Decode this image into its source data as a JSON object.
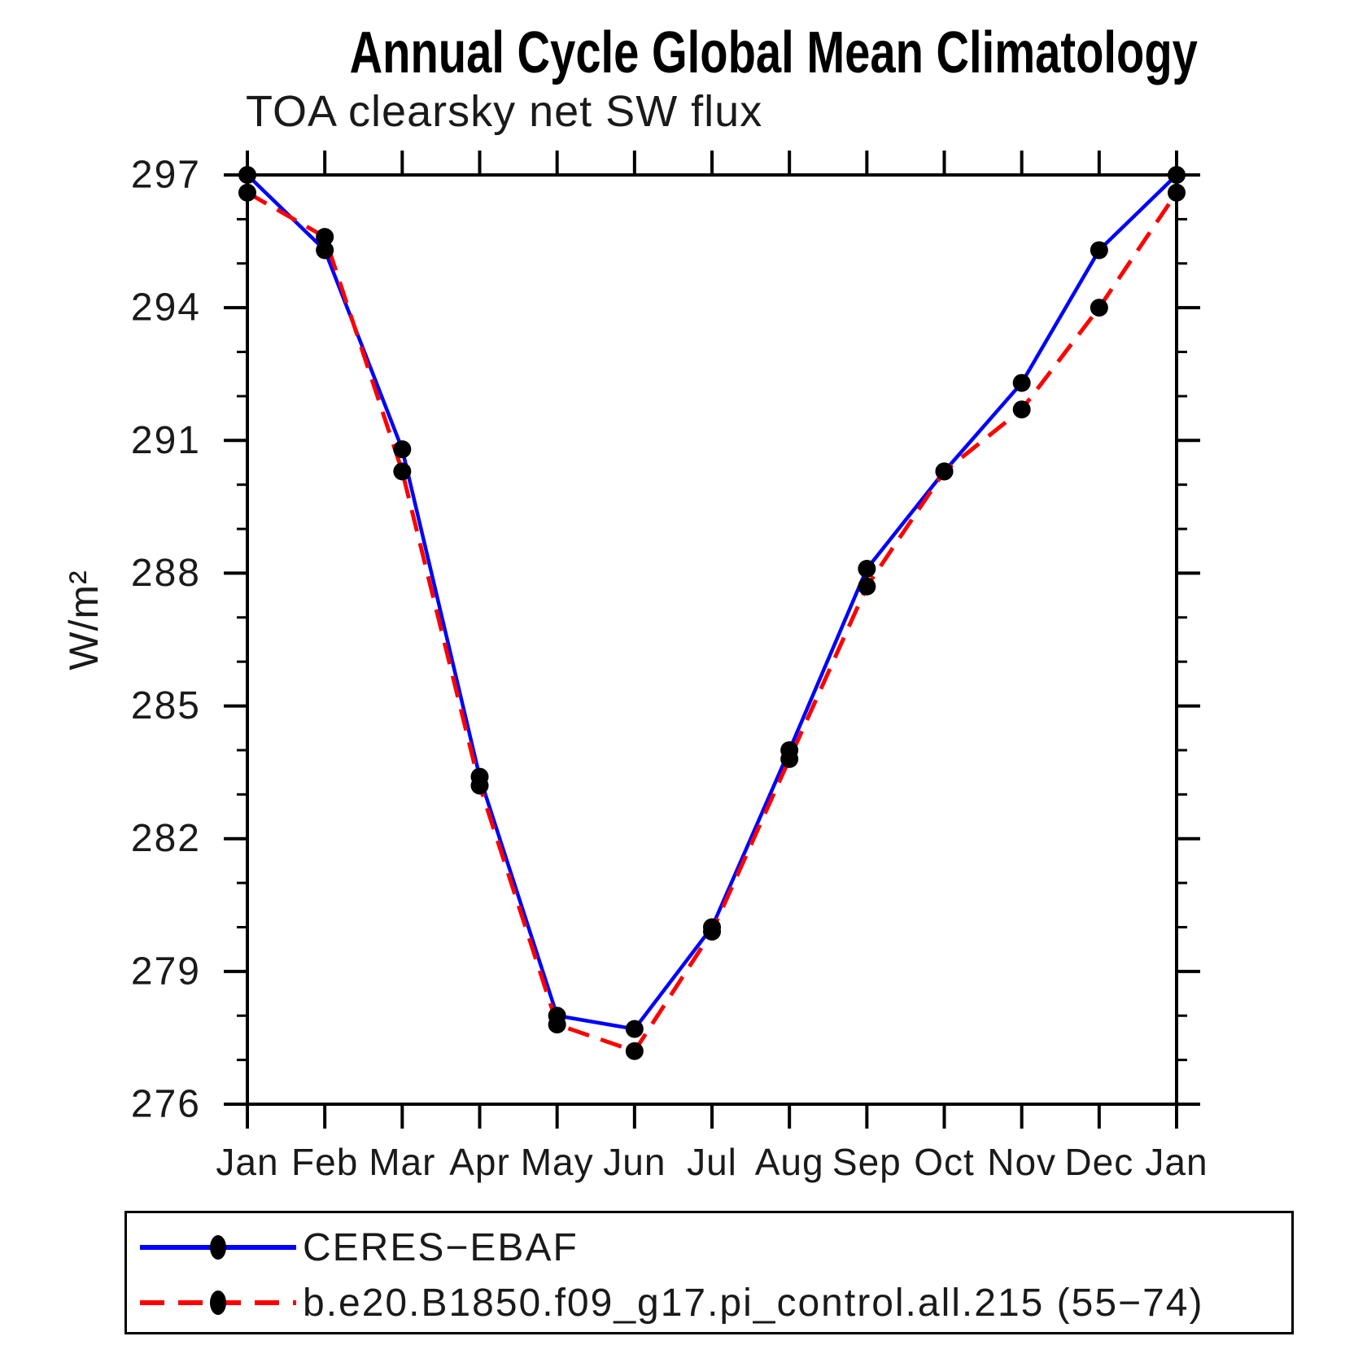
{
  "title": "Annual Cycle Global Mean Climatology",
  "subtitle": "TOA clearsky net SW flux",
  "y_axis_label": "W/m²",
  "chart_data": {
    "type": "line",
    "title": "Annual Cycle Global Mean Climatology",
    "subtitle": "TOA clearsky net SW flux",
    "xlabel": "",
    "ylabel": "W/m²",
    "categories": [
      "Jan",
      "Feb",
      "Mar",
      "Apr",
      "May",
      "Jun",
      "Jul",
      "Aug",
      "Sep",
      "Oct",
      "Nov",
      "Dec",
      "Jan"
    ],
    "ylim": [
      276,
      297
    ],
    "y_major_ticks": [
      276,
      279,
      282,
      285,
      288,
      291,
      294,
      297
    ],
    "y_minor_tick_step": 1,
    "grid": false,
    "legend_position": "bottom-left-box",
    "marker": "filled-circle",
    "marker_color": "#000000",
    "frame_color": "#000000",
    "series": [
      {
        "name": "CERES−EBAF",
        "color": "#0000ff",
        "line_style": "solid",
        "values": [
          297.0,
          295.3,
          290.8,
          283.4,
          278.0,
          277.7,
          280.0,
          284.0,
          288.1,
          290.3,
          292.3,
          295.3,
          297.0
        ]
      },
      {
        "name": "b.e20.B1850.f09_g17.pi_control.all.215 (55−74)",
        "color": "#ff0000",
        "line_style": "dashed",
        "values": [
          296.6,
          295.6,
          290.3,
          283.2,
          277.8,
          277.2,
          279.9,
          283.8,
          287.7,
          290.3,
          291.7,
          294.0,
          296.6
        ]
      }
    ]
  },
  "legend": {
    "entries": [
      {
        "label": "CERES−EBAF",
        "sample": "blue-solid-line-black-dot"
      },
      {
        "label": "b.e20.B1850.f09_g17.pi_control.all.215 (55−74)",
        "sample": "red-dashed-line-black-dot"
      }
    ]
  }
}
